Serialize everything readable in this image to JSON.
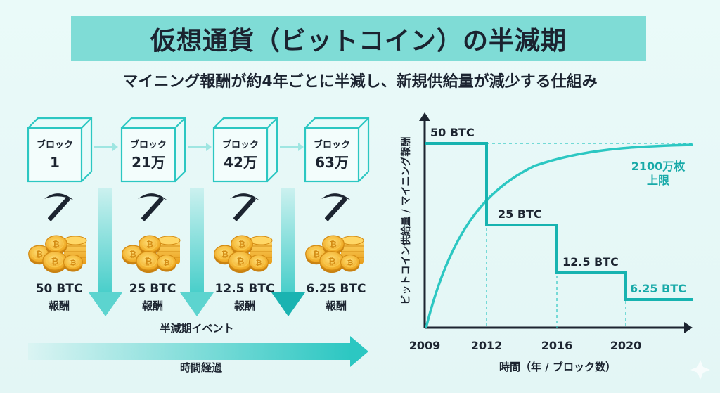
{
  "title": "仮想通貨（ビットコイン）の半減期",
  "subtitle": "マイニング報酬が約4年ごとに半減し、新規供給量が減少する仕組み",
  "blocks": [
    {
      "line1": "ブロック",
      "line2": "1"
    },
    {
      "line1": "ブロック",
      "line2": "21万"
    },
    {
      "line1": "ブロック",
      "line2": "42万"
    },
    {
      "line1": "ブロック",
      "line2": "63万"
    }
  ],
  "rewards": [
    {
      "amount": "50 BTC",
      "label": "報酬"
    },
    {
      "amount": "25 BTC",
      "label": "報酬"
    },
    {
      "amount": "12.5 BTC",
      "label": "報酬"
    },
    {
      "amount": "6.25 BTC",
      "label": "報酬"
    }
  ],
  "halving_event_label": "半減期イベント",
  "time_label": "時間経過",
  "chart_data": {
    "type": "line",
    "xlabel": "時間（年 / ブロック数）",
    "ylabel": "ビットコイン供給量 / マイニング報酬",
    "x_ticks": [
      "2009",
      "2012",
      "2016",
      "2020"
    ],
    "reward_series": {
      "name": "",
      "steps": [
        {
          "from": "2009",
          "to": "2012",
          "label": "50 BTC"
        },
        {
          "from": "2012",
          "to": "2016",
          "label": "25 BTC"
        },
        {
          "from": "2016",
          "to": "2020",
          "label": "12.5 BTC"
        },
        {
          "from": "2020",
          "to": "",
          "label": "6.25 BTC"
        }
      ],
      "values": [
        50,
        25,
        12.5,
        6.25
      ]
    },
    "supply_series": {
      "name": "",
      "cap_label_line1": "2100万枚",
      "cap_label_line2": "上限"
    },
    "grid": false
  },
  "colors": {
    "teal": "#2cc7c2",
    "teal_dark": "#17a9a8",
    "title_bg": "#7fdcd6",
    "coin": "#f2b228"
  },
  "icons": [
    "pickaxe-icon",
    "bitcoin-coins-icon",
    "down-arrow-icon",
    "right-arrow-icon"
  ]
}
